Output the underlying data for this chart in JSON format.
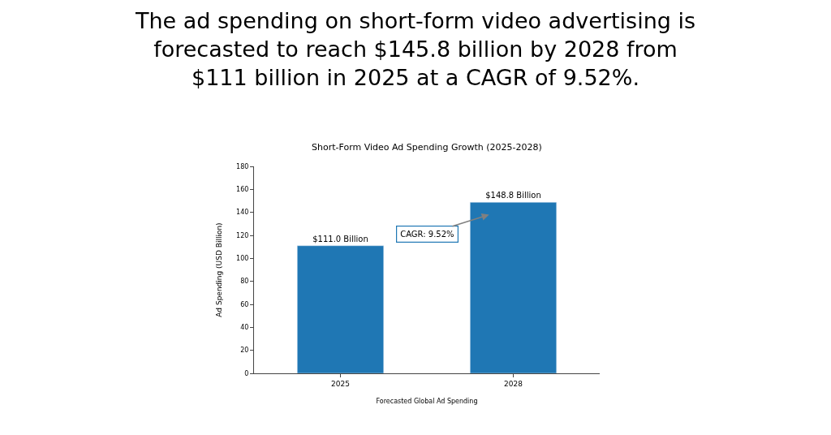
{
  "chart_data": {
    "type": "bar",
    "title": "The ad spending on short-form video advertising is forecasted to reach $145.8 billion by 2028 from $111 billion in 2025 at a CAGR of 9.52%.",
    "subtitle": "Short-Form Video Ad Spending Growth (2025-2028)",
    "xlabel": "Forecasted Global Ad Spending",
    "ylabel": "Ad Spending (USD Billion)",
    "categories": [
      "2025",
      "2028"
    ],
    "values": [
      111.0,
      148.8
    ],
    "value_labels": [
      "$111.0 Billion",
      "$148.8 Billion"
    ],
    "color": "#1f77b4",
    "ylim": [
      0,
      180
    ],
    "yticks": [
      0,
      20,
      40,
      60,
      80,
      100,
      120,
      140,
      160,
      180
    ],
    "annotations": [
      "CAGR: 9.52%"
    ],
    "legend": false
  }
}
